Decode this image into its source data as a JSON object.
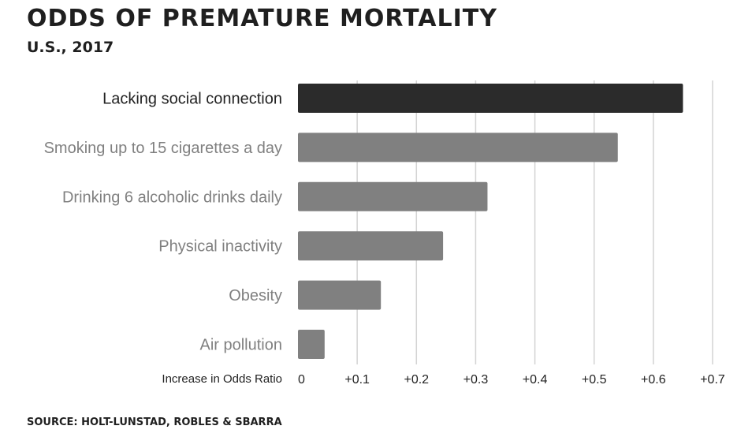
{
  "header": {
    "title": "ODDS OF PREMATURE MORTALITY",
    "subtitle": "U.S., 2017"
  },
  "footer": {
    "source": "SOURCE: HOLT-LUNSTAD, ROBLES & SBARRA"
  },
  "colors": {
    "highlight_bar": "#2b2b2b",
    "default_bar": "#808080",
    "highlight_label": "#222222",
    "default_label": "#808080",
    "grid": "#d3d3d3"
  },
  "chart_data": {
    "type": "bar",
    "orientation": "horizontal",
    "categories": [
      "Lacking social connection",
      "Smoking up to 15 cigarettes a day",
      "Drinking 6 alcoholic drinks daily",
      "Physical inactivity",
      "Obesity",
      "Air pollution"
    ],
    "values": [
      0.65,
      0.54,
      0.32,
      0.245,
      0.14,
      0.045
    ],
    "highlight_index": 0,
    "xlabel": "Increase in Odds Ratio",
    "xlim": [
      0,
      0.7
    ],
    "ticks": [
      0,
      0.1,
      0.2,
      0.3,
      0.4,
      0.5,
      0.6,
      0.7
    ],
    "tick_labels": [
      "0",
      "+0.1",
      "+0.2",
      "+0.3",
      "+0.4",
      "+0.5",
      "+0.6",
      "+0.7"
    ],
    "grid": true
  }
}
